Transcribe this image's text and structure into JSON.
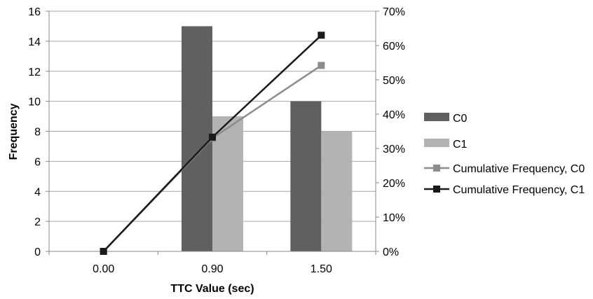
{
  "chart_data": {
    "type": "bar",
    "categories": [
      "0.00",
      "0.90",
      "1.50"
    ],
    "xlabel": "TTC Value (sec)",
    "ylabel": "Frequency",
    "ylim": [
      0,
      16
    ],
    "y2lim": [
      0,
      70
    ],
    "y_ticks": [
      0,
      2,
      4,
      6,
      8,
      10,
      12,
      14,
      16
    ],
    "y2_ticks": [
      "0%",
      "10%",
      "20%",
      "30%",
      "40%",
      "50%",
      "60%",
      "70%"
    ],
    "grid": true,
    "legend_position": "right",
    "series": [
      {
        "name": "C0",
        "type": "bar",
        "axis": "left",
        "color": "#606060",
        "values": [
          0,
          15,
          10
        ]
      },
      {
        "name": "C1",
        "type": "bar",
        "axis": "left",
        "color": "#b3b3b3",
        "values": [
          0,
          9,
          8
        ]
      },
      {
        "name": "Cumulative Frequency, C0",
        "type": "line",
        "axis": "right",
        "color": "#8c8c8c",
        "values": [
          0,
          33,
          54.2
        ]
      },
      {
        "name": "Cumulative Frequency, C1",
        "type": "line",
        "axis": "right",
        "color": "#1a1a1a",
        "values": [
          0,
          33.3,
          63
        ]
      }
    ]
  }
}
